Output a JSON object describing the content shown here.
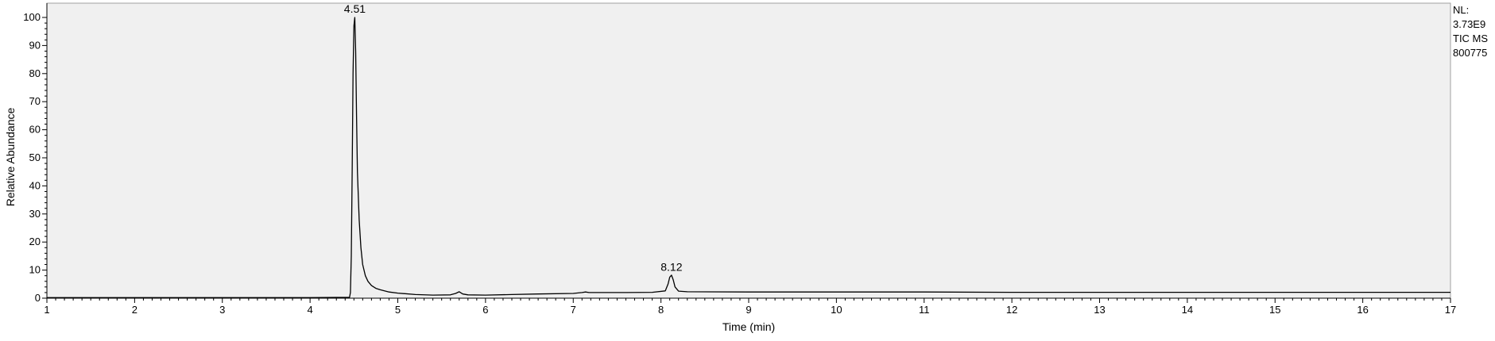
{
  "info": {
    "nl_label": "NL:",
    "nl_value": "3.73E9",
    "filter": "TIC  MS",
    "sample": "800775"
  },
  "chart_data": {
    "type": "line",
    "xlabel": "Time (min)",
    "ylabel": "Relative Abundance",
    "xlim": [
      1,
      17
    ],
    "ylim": [
      0,
      100
    ],
    "x_ticks": [
      1,
      2,
      3,
      4,
      5,
      6,
      7,
      8,
      9,
      10,
      11,
      12,
      13,
      14,
      15,
      16,
      17
    ],
    "y_ticks": [
      0,
      10,
      20,
      30,
      40,
      50,
      60,
      70,
      80,
      90,
      100
    ],
    "grid": false,
    "peak_labels": [
      {
        "x": 4.51,
        "y": 100,
        "label": "4.51"
      },
      {
        "x": 8.12,
        "y": 8,
        "label": "8.12"
      }
    ],
    "series": [
      {
        "color": "#000000",
        "x": [
          1.0,
          2.0,
          3.0,
          4.0,
          4.45,
          4.46,
          4.47,
          4.48,
          4.49,
          4.5,
          4.51,
          4.52,
          4.53,
          4.54,
          4.56,
          4.58,
          4.6,
          4.63,
          4.66,
          4.7,
          4.75,
          4.8,
          4.9,
          5.0,
          5.2,
          5.4,
          5.6,
          5.66,
          5.7,
          5.74,
          5.8,
          6.0,
          6.3,
          6.6,
          7.0,
          7.1,
          7.14,
          7.18,
          7.3,
          7.6,
          7.9,
          8.05,
          8.08,
          8.1,
          8.12,
          8.14,
          8.16,
          8.2,
          8.3,
          9.0,
          10.0,
          11.0,
          12.0,
          13.0,
          14.0,
          15.0,
          16.0,
          17.0
        ],
        "y": [
          0.2,
          0.2,
          0.2,
          0.2,
          0.3,
          2,
          15,
          45,
          80,
          97,
          100,
          88,
          65,
          45,
          28,
          18,
          12,
          8,
          6,
          4.5,
          3.5,
          3,
          2.2,
          1.8,
          1.3,
          1.1,
          1.2,
          1.7,
          2.3,
          1.5,
          1.2,
          1.1,
          1.3,
          1.5,
          1.7,
          2.0,
          2.2,
          2.0,
          2.0,
          2.0,
          2.1,
          2.6,
          5,
          7.5,
          8.2,
          6.5,
          4,
          2.5,
          2.3,
          2.2,
          2.2,
          2.2,
          2.1,
          2.1,
          2.1,
          2.1,
          2.1,
          2.1
        ]
      }
    ]
  }
}
